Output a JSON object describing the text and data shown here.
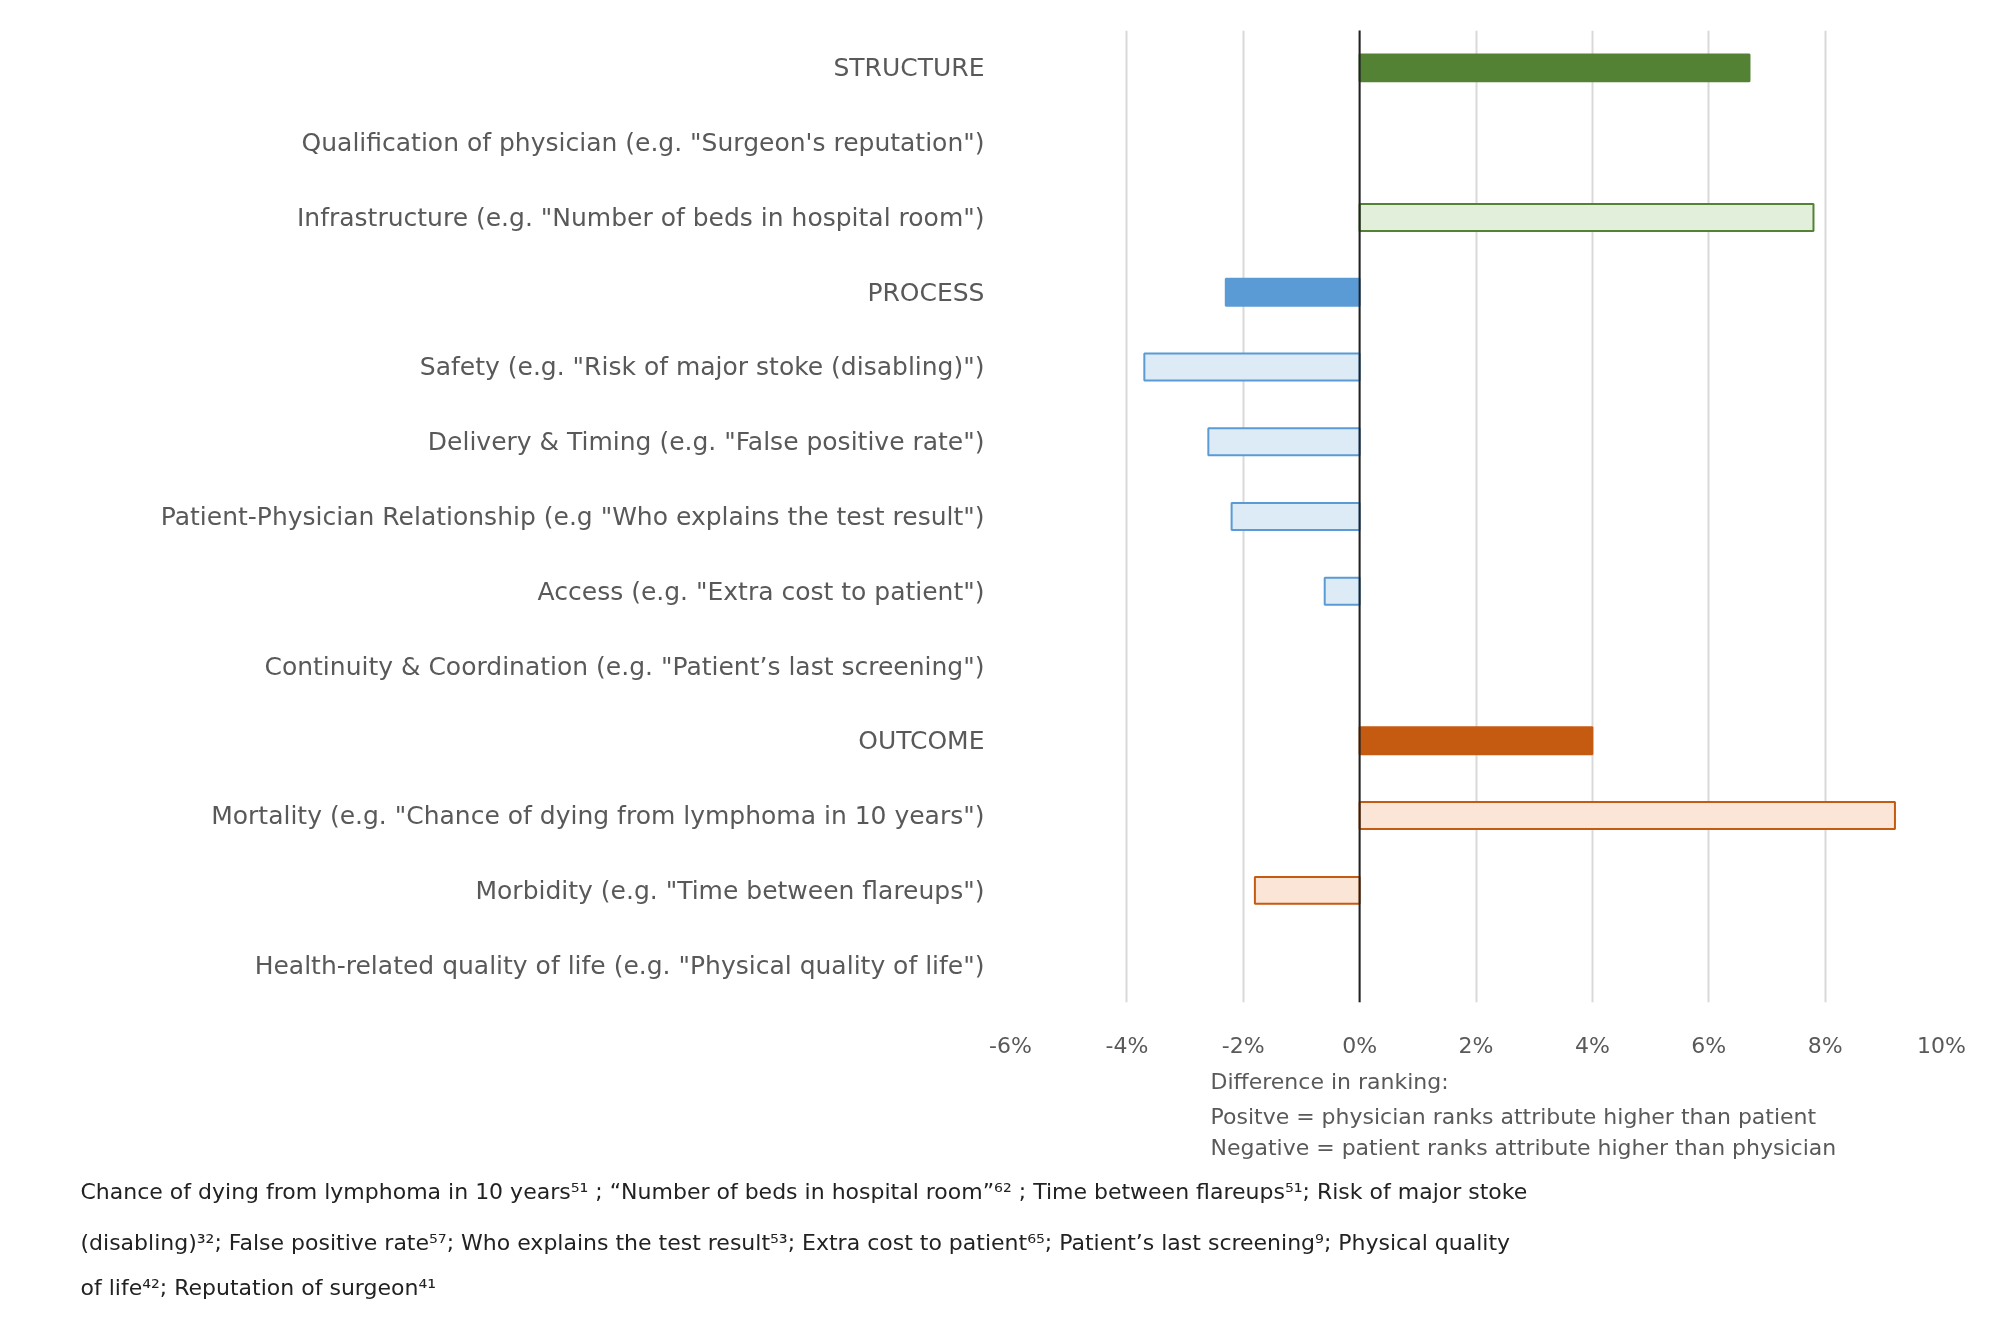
{
  "chart_data": {
    "type": "bar",
    "orientation": "horizontal",
    "categories": [
      "STRUCTURE",
      "Qualification of physician (e.g. \"Surgeon's reputation\")",
      "Infrastructure (e.g. \"Number of beds in hospital room\")",
      "PROCESS",
      "Safety (e.g. \"Risk of major stoke (disabling)\")",
      "Delivery & Timing (e.g. \"False positive rate\")",
      "Patient-Physician Relationship (e.g \"Who explains the test result\")",
      "Access (e.g. \"Extra cost to patient\")",
      "Continuity & Coordination (e.g. \"Patient’s last screening\")",
      "OUTCOME",
      "Mortality (e.g. \"Chance of dying from lymphoma in 10 years\")",
      "Morbidity (e.g. \"Time between flareups\")",
      "Health-related quality of life (e.g. \"Physical quality of life\")"
    ],
    "values": [
      6.7,
      null,
      7.8,
      -2.3,
      -3.7,
      -2.6,
      -2.2,
      -0.6,
      null,
      4.0,
      9.2,
      -1.8,
      null
    ],
    "colors": [
      "#548235",
      "#e2efda",
      "#e2efda",
      "#5b9bd5",
      "#ddebf7",
      "#ddebf7",
      "#ddebf7",
      "#ddebf7",
      "#ddebf7",
      "#c55a11",
      "#fbe5d6",
      "#fbe5d6",
      "#fbe5d6"
    ],
    "xlim": [
      -6,
      10
    ],
    "xticks": [
      {
        "value": -6,
        "label": "-6%"
      },
      {
        "value": -4,
        "label": "-4%"
      },
      {
        "value": -2,
        "label": "-2%"
      },
      {
        "value": 0,
        "label": "0%"
      },
      {
        "value": 2,
        "label": "2%"
      },
      {
        "value": 4,
        "label": "4%"
      },
      {
        "value": 6,
        "label": "6%"
      },
      {
        "value": 8,
        "label": "8%"
      },
      {
        "value": 10,
        "label": "10%"
      }
    ],
    "grid": "x",
    "annotations": [
      "Difference in ranking:",
      "Positve = physician ranks attribute higher than patient",
      "Negative = patient ranks attribute higher than physician",
      "Chance of dying from lymphoma in 10 years⁵¹ ; “Number of beds in hospital room”⁶² ; Time between flareups⁵¹; Risk of major stoke (disabling)³²; False positive rate⁵⁷; Who explains the test result⁵³; Extra cost to patient⁶⁵; Patient’s last screening⁹; Physical quality of life⁴²; Reputation of surgeon⁴¹"
    ]
  }
}
